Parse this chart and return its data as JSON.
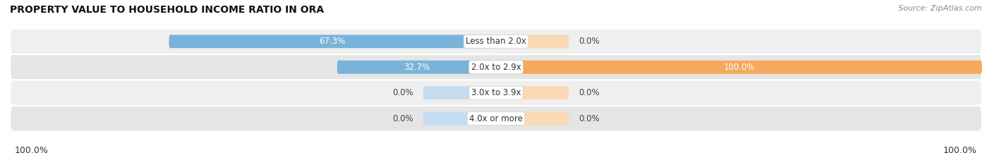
{
  "title": "PROPERTY VALUE TO HOUSEHOLD INCOME RATIO IN ORA",
  "source": "Source: ZipAtlas.com",
  "categories": [
    "Less than 2.0x",
    "2.0x to 2.9x",
    "3.0x to 3.9x",
    "4.0x or more"
  ],
  "without_mortgage": [
    67.3,
    32.7,
    0.0,
    0.0
  ],
  "with_mortgage": [
    0.0,
    100.0,
    0.0,
    0.0
  ],
  "color_without": "#7ab3d9",
  "color_with": "#f5a95c",
  "color_without_light": "#c5ddf0",
  "color_with_light": "#fad9b5",
  "row_bg": "#efefef",
  "row_bg2": "#e5e5e5",
  "label_left_value": "100.0%",
  "label_right_value": "100.0%",
  "bar_height": 0.52,
  "figsize": [
    14.06,
    2.34
  ],
  "dpi": 100,
  "max_val": 100
}
